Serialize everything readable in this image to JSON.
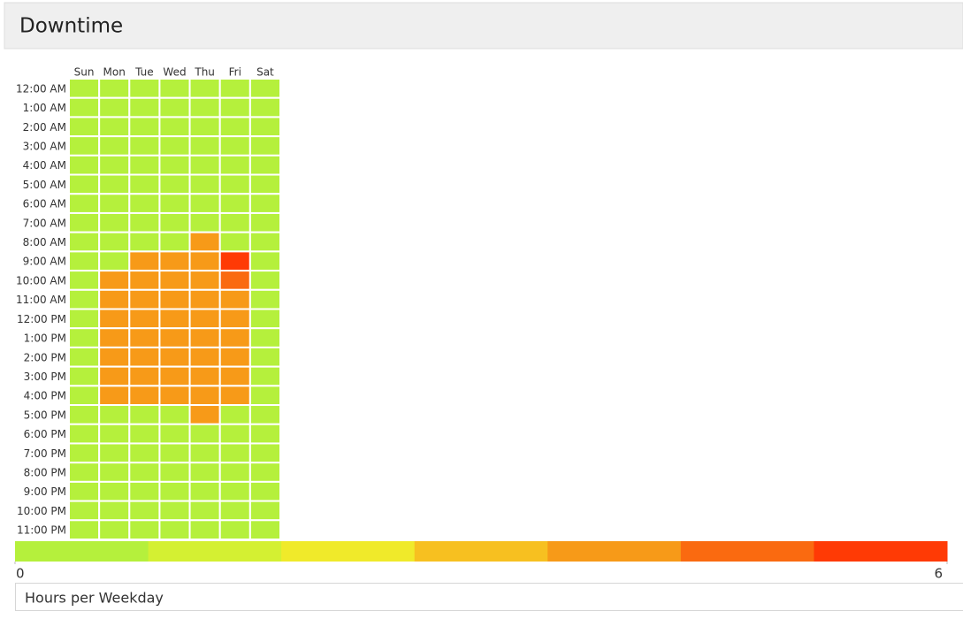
{
  "chart_data": {
    "type": "heatmap",
    "title": "Downtime",
    "x": [
      "Sun",
      "Mon",
      "Tue",
      "Wed",
      "Thu",
      "Fri",
      "Sat"
    ],
    "y": [
      "12:00 AM",
      "1:00 AM",
      "2:00 AM",
      "3:00 AM",
      "4:00 AM",
      "5:00 AM",
      "6:00 AM",
      "7:00 AM",
      "8:00 AM",
      "9:00 AM",
      "10:00 AM",
      "11:00 AM",
      "12:00 PM",
      "1:00 PM",
      "2:00 PM",
      "3:00 PM",
      "4:00 PM",
      "5:00 PM",
      "6:00 PM",
      "7:00 PM",
      "8:00 PM",
      "9:00 PM",
      "10:00 PM",
      "11:00 PM"
    ],
    "values": [
      [
        0,
        0,
        0,
        0,
        0,
        0,
        0
      ],
      [
        0,
        0,
        0,
        0,
        0,
        0,
        0
      ],
      [
        0,
        0,
        0,
        0,
        0,
        0,
        0
      ],
      [
        0,
        0,
        0,
        0,
        0,
        0,
        0
      ],
      [
        0,
        0,
        0,
        0,
        0,
        0,
        0
      ],
      [
        0,
        0,
        0,
        0,
        0,
        0,
        0
      ],
      [
        0,
        0,
        0,
        0,
        0,
        0,
        0
      ],
      [
        0,
        0,
        0,
        0,
        0,
        0,
        0
      ],
      [
        0,
        0,
        0,
        0,
        4,
        0,
        0
      ],
      [
        0,
        0,
        4,
        4,
        4,
        6,
        0
      ],
      [
        0,
        4,
        4,
        4,
        4,
        5,
        0
      ],
      [
        0,
        4,
        4,
        4,
        4,
        4,
        0
      ],
      [
        0,
        4,
        4,
        4,
        4,
        4,
        0
      ],
      [
        0,
        4,
        4,
        4,
        4,
        4,
        0
      ],
      [
        0,
        4,
        4,
        4,
        4,
        4,
        0
      ],
      [
        0,
        4,
        4,
        4,
        4,
        4,
        0
      ],
      [
        0,
        4,
        4,
        4,
        4,
        4,
        0
      ],
      [
        0,
        0,
        0,
        0,
        4,
        0,
        0
      ],
      [
        0,
        0,
        0,
        0,
        0,
        0,
        0
      ],
      [
        0,
        0,
        0,
        0,
        0,
        0,
        0
      ],
      [
        0,
        0,
        0,
        0,
        0,
        0,
        0
      ],
      [
        0,
        0,
        0,
        0,
        0,
        0,
        0
      ],
      [
        0,
        0,
        0,
        0,
        0,
        0,
        0
      ],
      [
        0,
        0,
        0,
        0,
        0,
        0,
        0
      ]
    ],
    "colors": [
      "#b5f03c",
      "#d4f032",
      "#f0ea2a",
      "#f7c020",
      "#f79a18",
      "#fa6a10",
      "#ff3a05"
    ],
    "zlim": [
      0,
      6
    ],
    "zticks": [
      0,
      6
    ],
    "legend_title": "Hours per Weekday"
  }
}
